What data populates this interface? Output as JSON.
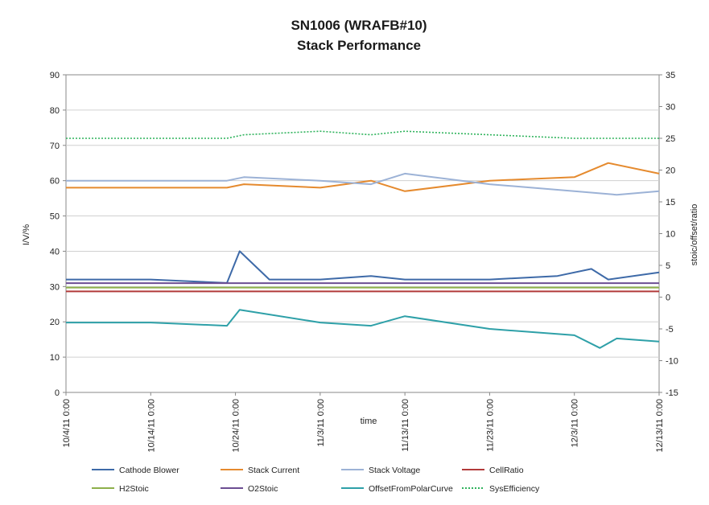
{
  "chart_data": {
    "type": "line",
    "title": "SN1006 (WRAFB#10)",
    "subtitle": "Stack Performance",
    "xlabel": "time",
    "ylabel_left": "I/V/%",
    "ylabel_right": "stoic/offset/ratio",
    "x_ticks": [
      "10/4/11 0:00",
      "10/14/11 0:00",
      "10/24/11 0:00",
      "11/3/11 0:00",
      "11/13/11 0:00",
      "11/23/11 0:00",
      "12/3/11 0:00",
      "12/13/11 0:00"
    ],
    "xlim": [
      "10/4/11 0:00",
      "12/13/11 0:00"
    ],
    "ylim_left": [
      0,
      90
    ],
    "y_ticks_left": [
      0,
      10,
      20,
      30,
      40,
      50,
      60,
      70,
      80,
      90
    ],
    "ylim_right": [
      -15,
      35
    ],
    "y_ticks_right": [
      -15,
      -10,
      -5,
      0,
      5,
      10,
      15,
      20,
      25,
      30,
      35
    ],
    "grid": "horizontal",
    "legend_position": "bottom",
    "series": [
      {
        "name": "Cathode Blower",
        "color": "#3e6aa8",
        "axis": "left",
        "style": "solid",
        "points": [
          [
            "10/4/11 0:00",
            32
          ],
          [
            "10/14/11 0:00",
            32
          ],
          [
            "10/23/11 0:00",
            31
          ],
          [
            "10/24/11 12:00",
            40
          ],
          [
            "10/28/11 0:00",
            32
          ],
          [
            "11/3/11 0:00",
            32
          ],
          [
            "11/9/11 0:00",
            33
          ],
          [
            "11/13/11 0:00",
            32
          ],
          [
            "11/23/11 0:00",
            32
          ],
          [
            "12/1/11 0:00",
            33
          ],
          [
            "12/5/11 0:00",
            35
          ],
          [
            "12/7/11 0:00",
            32
          ],
          [
            "12/13/11 0:00",
            34
          ]
        ]
      },
      {
        "name": "Stack Current",
        "color": "#e58a2e",
        "axis": "left",
        "style": "solid",
        "points": [
          [
            "10/4/11 0:00",
            58
          ],
          [
            "10/14/11 0:00",
            58
          ],
          [
            "10/23/11 0:00",
            58
          ],
          [
            "10/25/11 0:00",
            59
          ],
          [
            "11/3/11 0:00",
            58
          ],
          [
            "11/9/11 0:00",
            60
          ],
          [
            "11/13/11 0:00",
            57
          ],
          [
            "11/23/11 0:00",
            60
          ],
          [
            "12/3/11 0:00",
            61
          ],
          [
            "12/7/11 0:00",
            65
          ],
          [
            "12/13/11 0:00",
            62
          ]
        ]
      },
      {
        "name": "Stack Voltage",
        "color": "#9cb2d6",
        "axis": "left",
        "style": "solid",
        "points": [
          [
            "10/4/11 0:00",
            60
          ],
          [
            "10/14/11 0:00",
            60
          ],
          [
            "10/23/11 0:00",
            60
          ],
          [
            "10/25/11 0:00",
            61
          ],
          [
            "11/3/11 0:00",
            60
          ],
          [
            "11/9/11 0:00",
            59
          ],
          [
            "11/13/11 0:00",
            62
          ],
          [
            "11/23/11 0:00",
            59
          ],
          [
            "12/3/11 0:00",
            57
          ],
          [
            "12/8/11 0:00",
            56
          ],
          [
            "12/13/11 0:00",
            57
          ]
        ]
      },
      {
        "name": "CellRatio",
        "color": "#b23a3a",
        "axis": "right",
        "style": "solid",
        "points": [
          [
            "10/4/11 0:00",
            0.9
          ],
          [
            "12/13/11 0:00",
            0.9
          ]
        ]
      },
      {
        "name": "H2Stoic",
        "color": "#8db04a",
        "axis": "right",
        "style": "solid",
        "points": [
          [
            "10/4/11 0:00",
            1.5
          ],
          [
            "12/13/11 0:00",
            1.5
          ]
        ]
      },
      {
        "name": "O2Stoic",
        "color": "#6c4d92",
        "axis": "right",
        "style": "solid",
        "points": [
          [
            "10/4/11 0:00",
            2.2
          ],
          [
            "12/13/11 0:00",
            2.2
          ]
        ]
      },
      {
        "name": "OffsetFromPolarCurve",
        "color": "#2ea0a8",
        "axis": "right",
        "style": "solid",
        "points": [
          [
            "10/4/11 0:00",
            -4
          ],
          [
            "10/14/11 0:00",
            -4
          ],
          [
            "10/23/11 0:00",
            -4.5
          ],
          [
            "10/24/11 12:00",
            -2
          ],
          [
            "11/3/11 0:00",
            -4
          ],
          [
            "11/9/11 0:00",
            -4.5
          ],
          [
            "11/13/11 0:00",
            -3
          ],
          [
            "11/23/11 0:00",
            -5
          ],
          [
            "12/3/11 0:00",
            -6
          ],
          [
            "12/6/11 0:00",
            -8
          ],
          [
            "12/8/11 0:00",
            -6.5
          ],
          [
            "12/13/11 0:00",
            -7
          ]
        ]
      },
      {
        "name": "SysEfficiency",
        "color": "#2fb35c",
        "axis": "left",
        "style": "dotted",
        "points": [
          [
            "10/4/11 0:00",
            72
          ],
          [
            "10/14/11 0:00",
            72
          ],
          [
            "10/23/11 0:00",
            72
          ],
          [
            "10/25/11 0:00",
            73
          ],
          [
            "11/3/11 0:00",
            74
          ],
          [
            "11/9/11 0:00",
            73
          ],
          [
            "11/13/11 0:00",
            74
          ],
          [
            "11/23/11 0:00",
            73
          ],
          [
            "12/3/11 0:00",
            72
          ],
          [
            "12/13/11 0:00",
            72
          ]
        ]
      }
    ]
  }
}
